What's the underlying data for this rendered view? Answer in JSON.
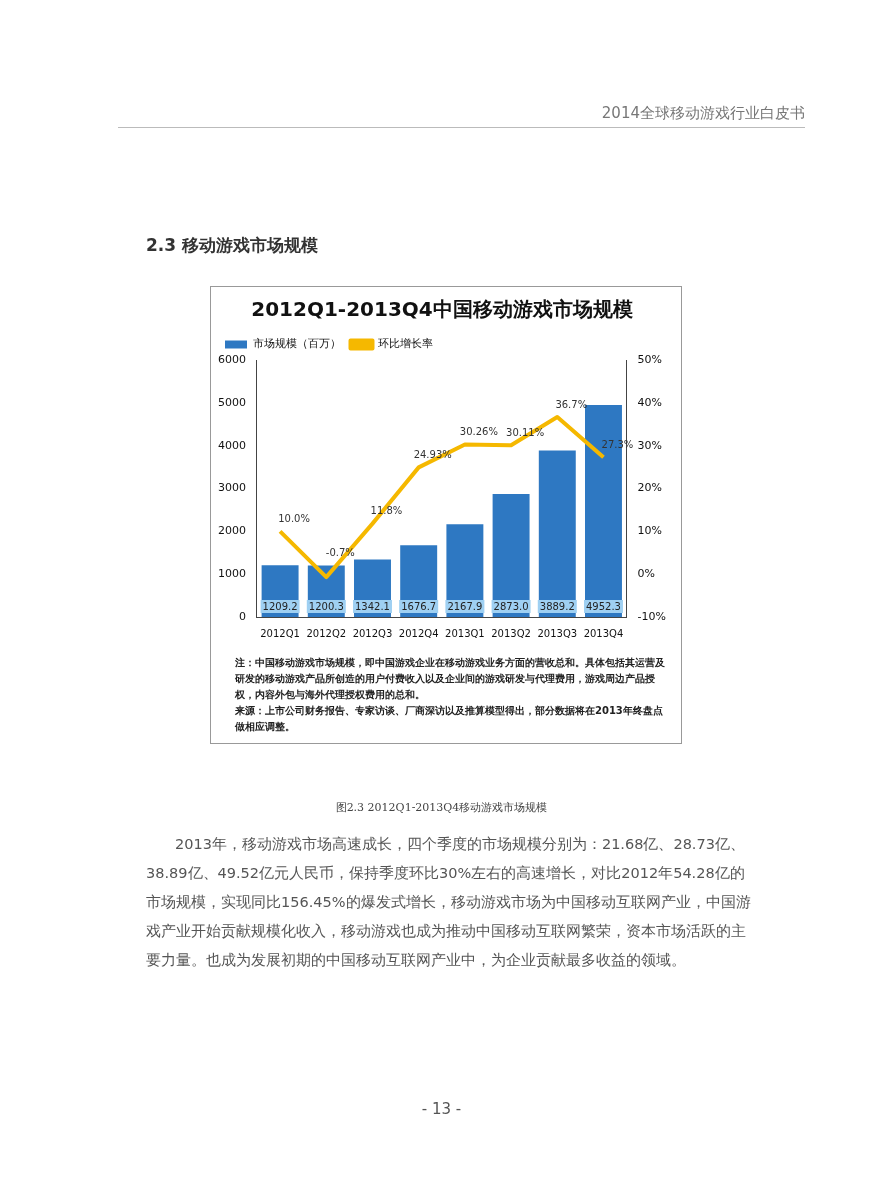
{
  "chart_data": {
    "type": "bar",
    "title": "2012Q1-2013Q4中国移动游戏市场规模",
    "categories": [
      "2012Q1",
      "2012Q2",
      "2012Q3",
      "2012Q4",
      "2013Q1",
      "2013Q2",
      "2013Q3",
      "2013Q4"
    ],
    "series": [
      {
        "name": "市场规模（百万）",
        "type": "bar",
        "color": "#2e78c2",
        "values": [
          1209.2,
          1200.3,
          1342.1,
          1676.7,
          2167.9,
          2873.0,
          3889.2,
          4952.3
        ],
        "value_labels": [
          "1209.2",
          "1200.3",
          "1342.1",
          "1676.7",
          "2167.9",
          "2873.0",
          "3889.2",
          "4952.3"
        ]
      },
      {
        "name": "环比增长率",
        "type": "line",
        "axis": "y2",
        "color": "#f5b800",
        "values": [
          10.0,
          -0.7,
          11.8,
          24.93,
          30.26,
          30.11,
          36.7,
          27.3
        ],
        "value_labels": [
          "10.0%",
          "-0.7%",
          "11.8%",
          "24.93%",
          "30.26%",
          "30.11%",
          "36.7%",
          "27.3%"
        ]
      }
    ],
    "ylim": [
      0,
      6000
    ],
    "yticks": [
      0,
      1000,
      2000,
      3000,
      4000,
      5000,
      6000
    ],
    "y2lim": [
      -10,
      50
    ],
    "y2ticks": [
      {
        "value": -10,
        "label": "-10%"
      },
      {
        "value": 0,
        "label": "0%"
      },
      {
        "value": 10,
        "label": "10%"
      },
      {
        "value": 20,
        "label": "20%"
      },
      {
        "value": 30,
        "label": "30%"
      },
      {
        "value": 40,
        "label": "40%"
      },
      {
        "value": 50,
        "label": "50%"
      }
    ],
    "grid": false,
    "legend": "top left",
    "marker": "none",
    "line_style": "solid",
    "annotations": [
      "2014全球移动游戏行业白皮书",
      "2.3  移动游戏市场规模",
      "注：中国移动游戏市场规模，即中国游戏企业在移动游戏业务方面的营收总和。具体包括其运营及研发的移动游戏产品所创造的用户付费收入以及企业间的游戏研发与代理费用，游戏周边产品授权，内容外包与海外代理授权费用的总和。",
      "来源：上市公司财务报告、专家访谈、厂商深访以及推算模型得出，部分数据将在2013年终盘点做相应调整。",
      "图2.3  2012Q1-2013Q4移动游戏市场规模",
      "2013年，移动游戏市场高速成长，四个季度的市场规模分别为：21.68亿、28.73亿、38.89亿、49.52亿元人民币，保持季度环比30%左右的高速增长，对比2012年54.28亿的市场规模，实现同比156.45%的爆发式增长，移动游戏市场为中国移动互联网产业，中国游戏产业开始贡献规模化收入，移动游戏也成为推动中国移动互联网繁荣，资本市场活跃的主要力量。也成为发展初期的中国移动互联网产业中，为企业贡献最多收益的领域。",
      "- 13 -"
    ]
  }
}
